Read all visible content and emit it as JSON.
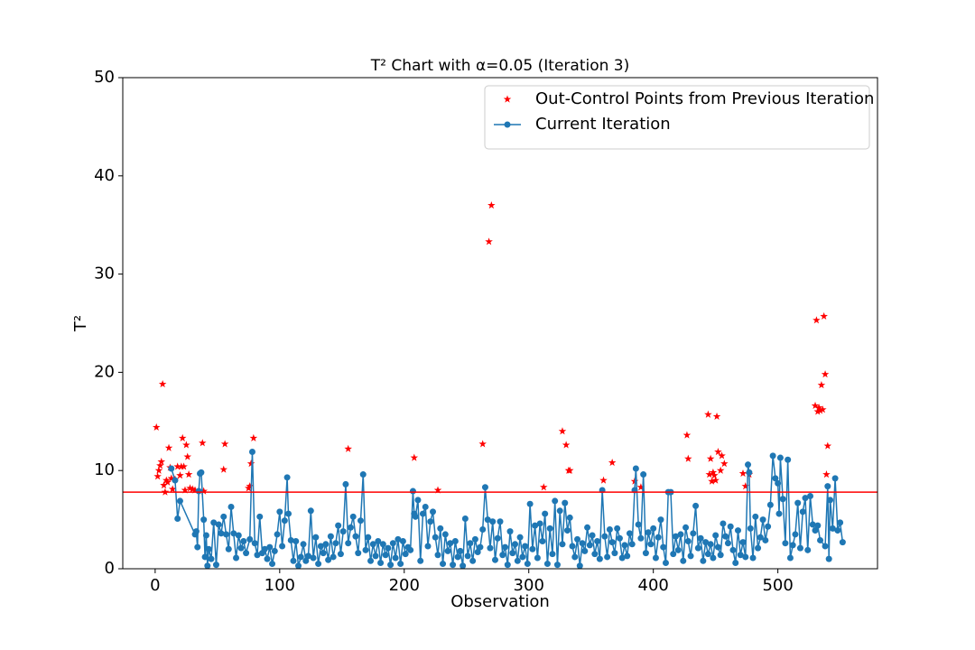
{
  "chart_data": {
    "type": "scatter-line",
    "title": "T² Chart with α=0.05 (Iteration 3)",
    "x_label": "Observation",
    "y_label": "T²",
    "xlim": [
      -26,
      580
    ],
    "ylim": [
      0,
      50
    ],
    "xticks": [
      0,
      100,
      200,
      300,
      400,
      500
    ],
    "yticks": [
      0,
      10,
      20,
      30,
      40,
      50
    ],
    "control_limit": 7.8,
    "control_limit_color": "#ff0000",
    "legend": "upper right",
    "series": [
      {
        "name": "Out-Control Points from Previous Iteration",
        "color": "#ff0000",
        "marker": "star",
        "x": [
          1,
          2,
          3,
          4,
          5,
          6,
          7,
          8,
          9,
          10,
          11,
          12,
          13,
          14,
          16,
          18,
          20,
          21,
          22,
          23,
          24,
          25,
          26,
          27,
          28,
          30,
          32,
          38,
          39,
          55,
          56,
          75,
          76,
          77,
          79,
          155,
          208,
          227,
          263,
          268,
          270,
          312,
          327,
          330,
          332,
          333,
          360,
          367,
          385,
          390,
          427,
          428,
          444,
          445,
          446,
          447,
          448,
          449,
          450,
          451,
          452,
          454,
          455,
          457,
          472,
          474,
          477,
          530,
          531,
          532,
          533,
          534,
          535,
          536,
          537,
          538,
          539,
          540
        ],
        "values": [
          14.4,
          9.4,
          10,
          10.5,
          10.9,
          18.8,
          8.5,
          7.8,
          9,
          8.8,
          12.3,
          10.3,
          9.2,
          8.1,
          9.1,
          10.4,
          9.5,
          10.4,
          13.3,
          10.4,
          8,
          12.6,
          11.4,
          9.6,
          8.2,
          8.1,
          8,
          12.8,
          7.9,
          10.1,
          12.7,
          8.2,
          8.4,
          10.7,
          13.3,
          12.2,
          11.3,
          8,
          12.7,
          33.3,
          37,
          8.3,
          14,
          12.6,
          10,
          10,
          9,
          10.8,
          8.9,
          8.3,
          13.6,
          11.2,
          15.7,
          9.6,
          11.2,
          8.9,
          9.8,
          9.5,
          9,
          15.5,
          11.9,
          10,
          11.5,
          10.7,
          9.7,
          8.4,
          9.6,
          16.6,
          25.3,
          16,
          16.4,
          16.1,
          18.7,
          16.2,
          25.7,
          19.8,
          9.6,
          12.5
        ]
      },
      {
        "name": "Current Iteration",
        "color": "#1f77b4",
        "marker": "circle-line",
        "x": [
          13,
          16,
          18,
          20,
          32,
          33,
          34,
          35,
          36,
          37,
          39,
          40,
          41,
          42,
          43,
          45,
          47,
          49,
          51,
          53,
          55,
          57,
          59,
          61,
          63,
          65,
          67,
          69,
          71,
          73,
          76,
          78,
          80,
          82,
          84,
          86,
          88,
          90,
          92,
          94,
          96,
          98,
          100,
          102,
          104,
          106,
          107,
          109,
          111,
          113,
          115,
          117,
          119,
          121,
          123,
          125,
          127,
          129,
          131,
          133,
          135,
          137,
          139,
          141,
          143,
          145,
          147,
          149,
          151,
          153,
          155,
          157,
          159,
          161,
          163,
          165,
          167,
          169,
          171,
          173,
          175,
          177,
          179,
          181,
          183,
          185,
          187,
          189,
          191,
          193,
          195,
          197,
          199,
          201,
          203,
          205,
          207,
          208,
          209,
          211,
          213,
          215,
          217,
          219,
          221,
          223,
          225,
          227,
          229,
          231,
          233,
          235,
          237,
          239,
          241,
          243,
          245,
          247,
          249,
          251,
          253,
          255,
          257,
          259,
          261,
          263,
          265,
          267,
          269,
          271,
          273,
          275,
          277,
          279,
          281,
          283,
          285,
          287,
          289,
          291,
          293,
          295,
          297,
          299,
          301,
          303,
          305,
          307,
          309,
          311,
          313,
          315,
          317,
          319,
          321,
          323,
          325,
          327,
          329,
          331,
          333,
          335,
          337,
          339,
          341,
          343,
          345,
          347,
          349,
          351,
          353,
          355,
          357,
          359,
          361,
          363,
          365,
          367,
          369,
          371,
          373,
          375,
          377,
          379,
          381,
          383,
          385,
          386,
          388,
          390,
          392,
          394,
          396,
          398,
          400,
          402,
          404,
          406,
          408,
          410,
          412,
          414,
          416,
          418,
          420,
          422,
          424,
          426,
          428,
          430,
          432,
          434,
          436,
          438,
          440,
          442,
          444,
          446,
          448,
          450,
          452,
          454,
          456,
          458,
          460,
          462,
          464,
          466,
          468,
          470,
          472,
          474,
          476,
          477,
          478,
          480,
          482,
          484,
          486,
          488,
          490,
          492,
          494,
          496,
          498,
          500,
          501,
          502,
          504,
          506,
          508,
          510,
          512,
          514,
          516,
          518,
          520,
          522,
          524,
          526,
          528,
          530,
          532,
          534,
          538,
          540,
          541,
          542,
          544,
          546,
          548,
          550,
          552
        ],
        "values": [
          10.2,
          9,
          5.1,
          6.9,
          3.5,
          3.8,
          2.2,
          7.9,
          9.7,
          9.8,
          5,
          1.2,
          3.4,
          0.3,
          2,
          1,
          4.7,
          0.4,
          4.5,
          3.6,
          5.3,
          3.5,
          2,
          6.3,
          3.6,
          1.1,
          3.4,
          2.1,
          2.8,
          1.6,
          3,
          11.9,
          2.6,
          1.4,
          5.3,
          1.6,
          2,
          1,
          2.2,
          0.5,
          1.8,
          3.5,
          5.8,
          2.3,
          4.9,
          9.3,
          5.6,
          2.9,
          0.8,
          2.8,
          0.3,
          1.2,
          2.5,
          0.8,
          1.3,
          5.9,
          1.1,
          3.2,
          0.5,
          2.3,
          1.6,
          2.5,
          0.9,
          3.3,
          1.2,
          2.6,
          4.4,
          1.5,
          3.8,
          8.6,
          2.6,
          4.2,
          5.3,
          3.3,
          1.6,
          4.9,
          9.6,
          1.9,
          3.2,
          0.8,
          2.5,
          1.3,
          2.8,
          0.6,
          2.5,
          1.4,
          2.1,
          0.4,
          2.6,
          1.1,
          3,
          0.5,
          2.8,
          1.5,
          2.2,
          1.9,
          7.9,
          5.6,
          5.3,
          7,
          0.8,
          5.6,
          6.3,
          2.3,
          4.8,
          5.8,
          3.2,
          1.4,
          4.1,
          0.5,
          3.5,
          1.8,
          2.6,
          0.4,
          2.8,
          1.2,
          1.8,
          0.3,
          5.1,
          1.3,
          2.6,
          0.8,
          3,
          1.7,
          2.2,
          4,
          8.3,
          5,
          2.1,
          4.8,
          0.9,
          3.1,
          4.8,
          1.4,
          2.2,
          0.4,
          3.8,
          1.6,
          2.5,
          0.8,
          3.2,
          1.2,
          2.3,
          0.5,
          6.6,
          2,
          4.4,
          1.1,
          4.6,
          2.8,
          5.6,
          0.5,
          4.1,
          1.5,
          6.9,
          0.4,
          5.9,
          2.5,
          6.7,
          3.9,
          5.2,
          2.3,
          1.2,
          3,
          0.3,
          2.6,
          1.8,
          4.2,
          2.4,
          3.4,
          1.5,
          2.8,
          1,
          8,
          3.3,
          1.2,
          4,
          2.7,
          1.6,
          4.1,
          3.1,
          1.1,
          2.4,
          1.3,
          3.6,
          2.5,
          8,
          10.2,
          4.5,
          3.1,
          9.6,
          1.6,
          3.7,
          2.5,
          4.1,
          1.1,
          3.2,
          5,
          2.2,
          0.6,
          7.8,
          7.8,
          1.5,
          3.3,
          1.9,
          3.5,
          0.8,
          4.2,
          2.8,
          1.3,
          3.6,
          6.4,
          2.1,
          3.1,
          0.8,
          2.7,
          1.5,
          2.5,
          1.1,
          3.4,
          2.2,
          1.4,
          4.6,
          3.3,
          2.6,
          4.3,
          1.9,
          0.6,
          3.9,
          1.4,
          2.7,
          1.2,
          10.6,
          9.8,
          4.1,
          1.1,
          5.3,
          2.1,
          3.2,
          5,
          2.9,
          4.3,
          6.5,
          11.5,
          9.2,
          8.7,
          5.6,
          11.3,
          7.1,
          2.6,
          11.1,
          1.1,
          2.4,
          3.5,
          6.7,
          2.1,
          5.8,
          7.2,
          1.9,
          7.4,
          4.5,
          3.9,
          4.4,
          2.9,
          2.3,
          8.4,
          1,
          7,
          4.1,
          9.2,
          3.9,
          4.7,
          2.7
        ]
      }
    ]
  }
}
